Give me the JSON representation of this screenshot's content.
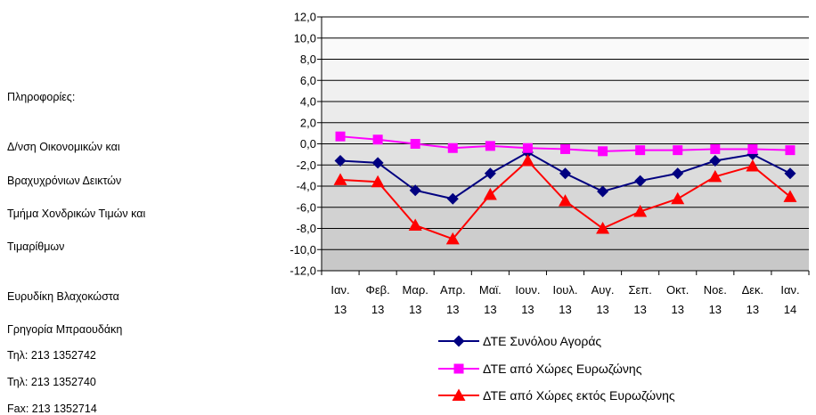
{
  "sidebar": {
    "lines": [
      "Πληροφορίες:",
      "Δ/νση Οικονομικών και",
      "Βραχυχρόνιων Δεικτών",
      "Τμήμα Χονδρικών Τιμών και",
      "Τιμαρίθμων",
      "Ευρυδίκη Βλαχοκώστα",
      "Γρηγορία Μπραουδάκη",
      "Τηλ: 213 1352742",
      "Τηλ: 213 1352740",
      "Fax: 213 1352714"
    ]
  },
  "chart_data": {
    "type": "line",
    "categories": [
      [
        "Ιαν.",
        "13"
      ],
      [
        "Φεβ.",
        "13"
      ],
      [
        "Μαρ.",
        "13"
      ],
      [
        "Απρ.",
        "13"
      ],
      [
        "Μαϊ.",
        "13"
      ],
      [
        "Ιουν.",
        "13"
      ],
      [
        "Ιουλ.",
        "13"
      ],
      [
        "Αυγ.",
        "13"
      ],
      [
        "Σεπ.",
        "13"
      ],
      [
        "Οκτ.",
        "13"
      ],
      [
        "Νοε.",
        "13"
      ],
      [
        "Δεκ.",
        "13"
      ],
      [
        "Ιαν.",
        "14"
      ]
    ],
    "ylim": [
      -12,
      12
    ],
    "yticks": [
      "12,0",
      "10,0",
      "8,0",
      "6,0",
      "4,0",
      "2,0",
      "0,0",
      "-2,0",
      "-4,0",
      "-6,0",
      "-8,0",
      "-10,0",
      "-12,0"
    ],
    "grid": true,
    "legend_position": "bottom",
    "series": [
      {
        "name": "ΔΤΕ Συνόλου Αγοράς",
        "color": "#000080",
        "marker": "diamond",
        "values": [
          -1.6,
          -1.8,
          -4.4,
          -5.2,
          -2.8,
          -0.8,
          -2.8,
          -4.5,
          -3.5,
          -2.8,
          -1.6,
          -1.0,
          -2.8
        ]
      },
      {
        "name": "ΔΤΕ από Χώρες Ευρωζώνης",
        "color": "#ff00ff",
        "marker": "square",
        "values": [
          0.7,
          0.4,
          0.0,
          -0.4,
          -0.2,
          -0.4,
          -0.5,
          -0.7,
          -0.6,
          -0.6,
          -0.5,
          -0.5,
          -0.6
        ]
      },
      {
        "name": "ΔΤΕ από Χώρες εκτός Ευρωζώνης",
        "color": "#ff0000",
        "marker": "triangle",
        "values": [
          -3.4,
          -3.6,
          -7.7,
          -9.0,
          -4.8,
          -1.6,
          -5.4,
          -8.0,
          -6.4,
          -5.2,
          -3.1,
          -2.1,
          -5.0
        ]
      }
    ]
  }
}
